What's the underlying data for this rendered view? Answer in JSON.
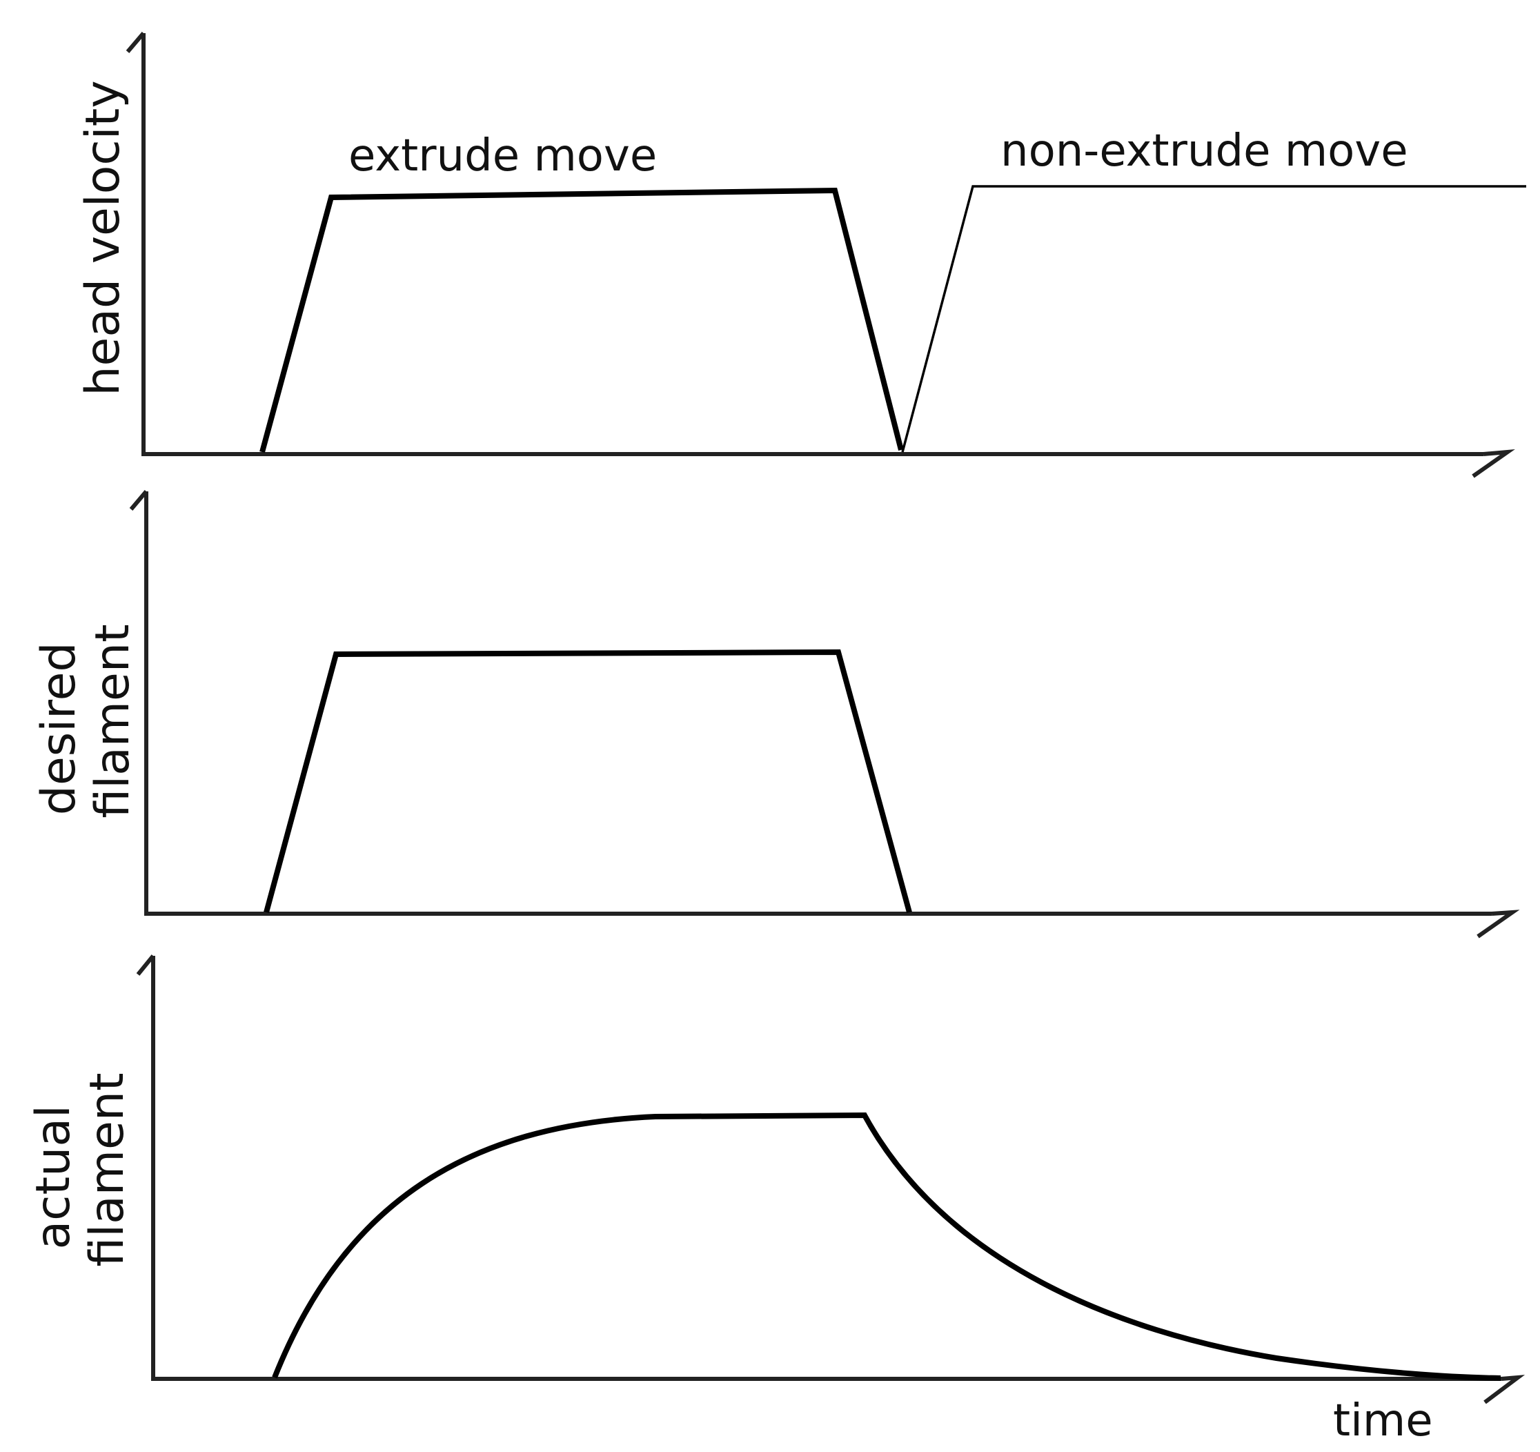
{
  "panels": [
    {
      "ylabel_lines": [
        "head velocity"
      ],
      "annotations": [
        "extrude move",
        "non-extrude move"
      ]
    },
    {
      "ylabel_lines": [
        "desired",
        "filament"
      ],
      "annotations": []
    },
    {
      "ylabel_lines": [
        "actual",
        "filament"
      ],
      "annotations": []
    }
  ],
  "xlabel": "time",
  "colors": {
    "line": "#000000",
    "axis": "#222222",
    "background": "#ffffff"
  }
}
